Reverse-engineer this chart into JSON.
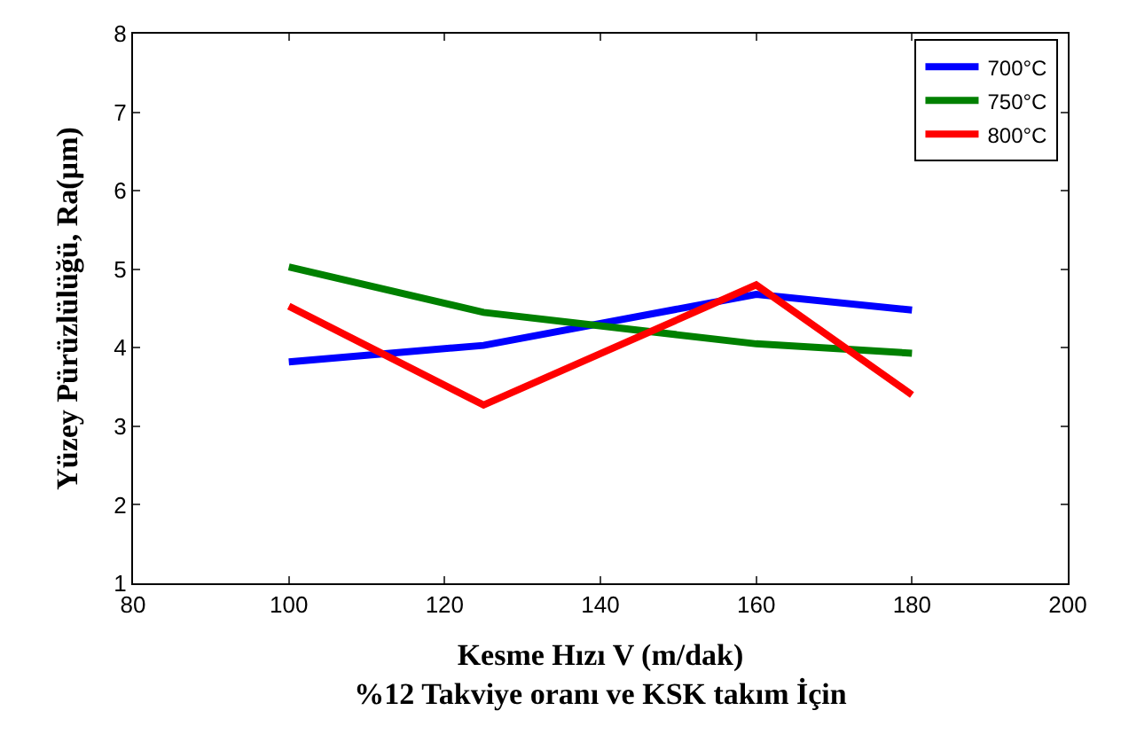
{
  "chart_data": {
    "type": "line",
    "xlabel": "Kesme Hızı V (m/dak)\n%12 Takviye oranı ve KSK takım İçin",
    "ylabel": "Yüzey Pürüzlülüğü, Ra(µm)",
    "x": [
      100,
      125,
      160,
      180
    ],
    "series": [
      {
        "name": "700°C",
        "color": "#0000ff",
        "values": [
          3.82,
          4.03,
          4.68,
          4.48
        ]
      },
      {
        "name": "750°C",
        "color": "#008000",
        "values": [
          5.03,
          4.45,
          4.05,
          3.93
        ]
      },
      {
        "name": "800°C",
        "color": "#ff0000",
        "values": [
          4.53,
          3.27,
          4.8,
          3.4
        ]
      }
    ],
    "xlim": [
      80,
      200
    ],
    "xticks": [
      80,
      100,
      120,
      140,
      160,
      180,
      200
    ],
    "ylim": [
      1,
      8
    ],
    "yticks": [
      1,
      2,
      3,
      4,
      5,
      6,
      7,
      8
    ],
    "legend": "top right",
    "marker": "none",
    "line_style": "solid"
  }
}
